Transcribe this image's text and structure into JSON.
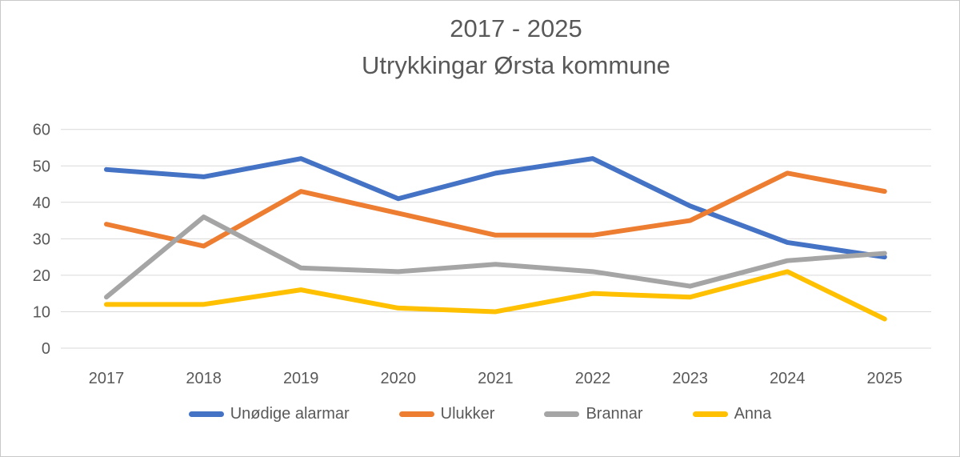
{
  "window": {
    "background": "#ffffff",
    "border_color": "#c9c9c9"
  },
  "title": {
    "line1": "2017 - 2025",
    "line2": "Utrykkingar Ørsta kommune",
    "color": "#595959"
  },
  "chart_data": {
    "type": "line",
    "title": "2017 - 2025 Utrykkingar Ørsta kommune",
    "categories": [
      "2017",
      "2018",
      "2019",
      "2020",
      "2021",
      "2022",
      "2023",
      "2024",
      "2025"
    ],
    "series": [
      {
        "name": "Unødige alarmar",
        "color": "#4472C4",
        "values": [
          49,
          47,
          52,
          41,
          48,
          52,
          39,
          29,
          25
        ]
      },
      {
        "name": "Ulukker",
        "color": "#ED7D31",
        "values": [
          34,
          28,
          43,
          37,
          31,
          31,
          35,
          48,
          43
        ]
      },
      {
        "name": "Brannar",
        "color": "#A5A5A5",
        "values": [
          14,
          36,
          22,
          21,
          23,
          21,
          17,
          24,
          26
        ]
      },
      {
        "name": "Anna",
        "color": "#FFC000",
        "values": [
          12,
          12,
          16,
          11,
          10,
          15,
          14,
          21,
          8
        ]
      }
    ],
    "xlabel": "",
    "ylabel": "",
    "ylim": [
      0,
      60
    ],
    "yticks": [
      0,
      10,
      20,
      30,
      40,
      50,
      60
    ],
    "grid": true,
    "gridline_color": "#D9D9D9",
    "axis_label_color": "#595959",
    "line_width": 6,
    "legend_position": "bottom"
  }
}
